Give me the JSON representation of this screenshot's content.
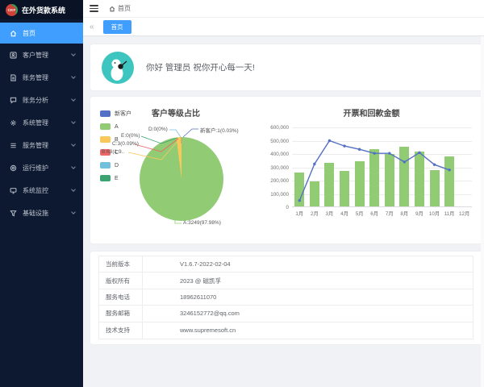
{
  "app": {
    "logo_text": "CKF",
    "title": "在外货款系统"
  },
  "header": {
    "breadcrumb_home": "首页"
  },
  "tabbar": {
    "collapse_label": "«",
    "active_tab": "首页"
  },
  "sidebar": {
    "items": [
      {
        "label": "首页",
        "active": true,
        "has_children": false
      },
      {
        "label": "客户管理",
        "active": false,
        "has_children": true
      },
      {
        "label": "账务管理",
        "active": false,
        "has_children": true
      },
      {
        "label": "账务分析",
        "active": false,
        "has_children": true
      },
      {
        "label": "系统管理",
        "active": false,
        "has_children": true
      },
      {
        "label": "服务管理",
        "active": false,
        "has_children": true
      },
      {
        "label": "运行维护",
        "active": false,
        "has_children": true
      },
      {
        "label": "系统监控",
        "active": false,
        "has_children": true
      },
      {
        "label": "基础设施",
        "active": false,
        "has_children": true
      }
    ]
  },
  "greeting": {
    "text": "你好 管理员 祝你开心每一天!"
  },
  "info": {
    "rows": [
      {
        "label": "当前版本",
        "value": "V1.6.7-2022-02-04"
      },
      {
        "label": "版权所有",
        "value": "2023 @ 磁凯孚"
      },
      {
        "label": "服务电话",
        "value": "18962611070"
      },
      {
        "label": "服务邮箱",
        "value": "3246152772@qq.com"
      },
      {
        "label": "技术支持",
        "value": "www.supremesoft.cn"
      }
    ]
  },
  "colors": {
    "accent": "#409eff",
    "sidebar_bg": "#0d1930",
    "main_bg": "#f0f2f5",
    "avatar_bg": "#3fc5c0",
    "bar_color": "#91cc75",
    "line_color": "#5470c6"
  },
  "chart_data": [
    {
      "type": "pie",
      "title": "客户等级占比",
      "legend_position": "left",
      "series": [
        {
          "name": "新客户",
          "value": 1,
          "percent": "0.03%",
          "color": "#5470c6"
        },
        {
          "name": "A",
          "value": 3249,
          "percent": "97.98%",
          "color": "#91cc75"
        },
        {
          "name": "B",
          "value": 63,
          "percent": "1.9%",
          "color": "#fac858"
        },
        {
          "name": "C",
          "value": 3,
          "percent": "0.09%",
          "color": "#ee6666"
        },
        {
          "name": "D",
          "value": 0,
          "percent": "0%",
          "color": "#73c0de"
        },
        {
          "name": "E",
          "value": 0,
          "percent": "0%",
          "color": "#3ba272"
        }
      ],
      "callout_labels": {
        "d": "D:0(0%)",
        "new": "新客户:1(0.03%)",
        "e": "E:0(0%)",
        "c": "C:3(0.09%)",
        "b": "B:63(1.9..",
        "a": "A:3249(97.98%)"
      }
    },
    {
      "type": "bar+line",
      "title": "开票和回款金额",
      "categories": [
        "1月",
        "2月",
        "3月",
        "4月",
        "5月",
        "6月",
        "7月",
        "8月",
        "9月",
        "10月",
        "11月",
        "12月"
      ],
      "series": [
        {
          "type": "bar",
          "color": "#91cc75",
          "values": [
            255000,
            185000,
            325000,
            265000,
            340000,
            430000,
            395000,
            450000,
            410000,
            270000,
            375000,
            0
          ]
        },
        {
          "type": "line",
          "color": "#5470c6",
          "values": [
            50000,
            325000,
            500000,
            460000,
            435000,
            405000,
            405000,
            340000,
            410000,
            320000,
            280000,
            null
          ]
        }
      ],
      "ylim": [
        0,
        600000
      ],
      "yticks": [
        "600,000",
        "500,000",
        "400,000",
        "300,000",
        "200,000",
        "100,000",
        "0"
      ],
      "grid": true
    }
  ]
}
